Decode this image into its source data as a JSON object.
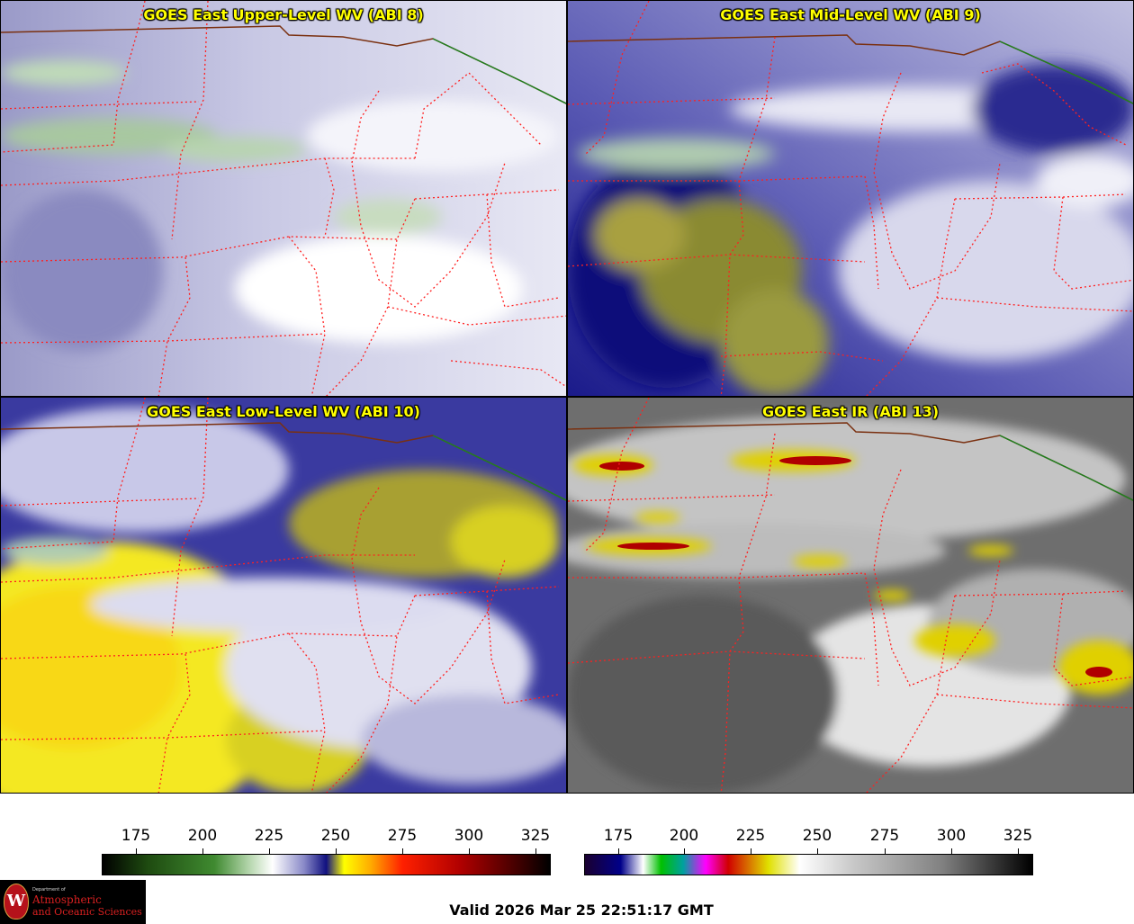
{
  "panels": [
    {
      "title": "GOES East Upper-Level WV (ABI 8)"
    },
    {
      "title": "GOES East Mid-Level WV (ABI 9)"
    },
    {
      "title": "GOES East Low-Level WV (ABI 10)"
    },
    {
      "title": "GOES East IR (ABI 13)"
    }
  ],
  "colorbars": {
    "left_ticks": [
      "175",
      "200",
      "225",
      "250",
      "275",
      "300",
      "325"
    ],
    "right_ticks": [
      "175",
      "200",
      "225",
      "250",
      "275",
      "300",
      "325"
    ]
  },
  "logo": {
    "letter": "W",
    "dept": "Department of",
    "line1": "Atmospheric",
    "line2": "and Oceanic Sciences"
  },
  "valid_time": "Valid 2026 Mar 25 22:51:17 GMT"
}
